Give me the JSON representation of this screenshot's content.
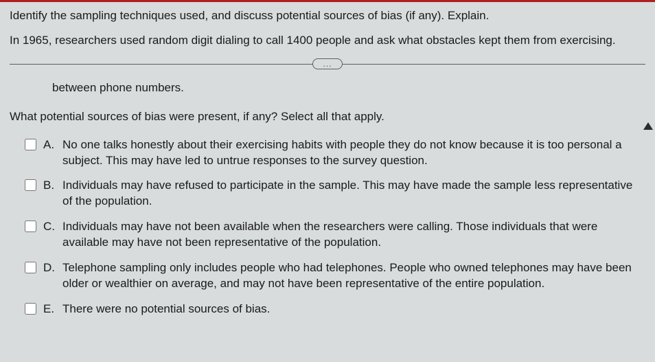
{
  "intro": {
    "line1": "Identify the sampling techniques used, and discuss potential sources of bias (if any). Explain.",
    "line2": "In 1965, researchers used random digit dialing to call 1400 people and ask what obstacles kept them from exercising."
  },
  "divider": {
    "pill_label": "..."
  },
  "prev_fragment": "between phone numbers.",
  "question": "What potential sources of bias were present, if any? Select all that apply.",
  "options": [
    {
      "letter": "A.",
      "text": "No one talks honestly about their exercising habits with people they do not know because it is too personal a subject. This may have led to untrue responses to the survey question."
    },
    {
      "letter": "B.",
      "text": "Individuals may have refused to participate in the sample. This may have made the sample less representative of the population."
    },
    {
      "letter": "C.",
      "text": "Individuals may have not been available when the researchers were calling. Those individuals that were available may have not been representative of the population."
    },
    {
      "letter": "D.",
      "text": "Telephone sampling only includes people who had telephones. People who owned telephones may have been older or wealthier on average, and may not have been representative of the entire population."
    },
    {
      "letter": "E.",
      "text": "There were no potential sources of bias."
    }
  ],
  "colors": {
    "background": "#d8dcdd",
    "top_bar": "#b02020",
    "text": "#1a1a1a",
    "divider": "#5a5f60"
  }
}
